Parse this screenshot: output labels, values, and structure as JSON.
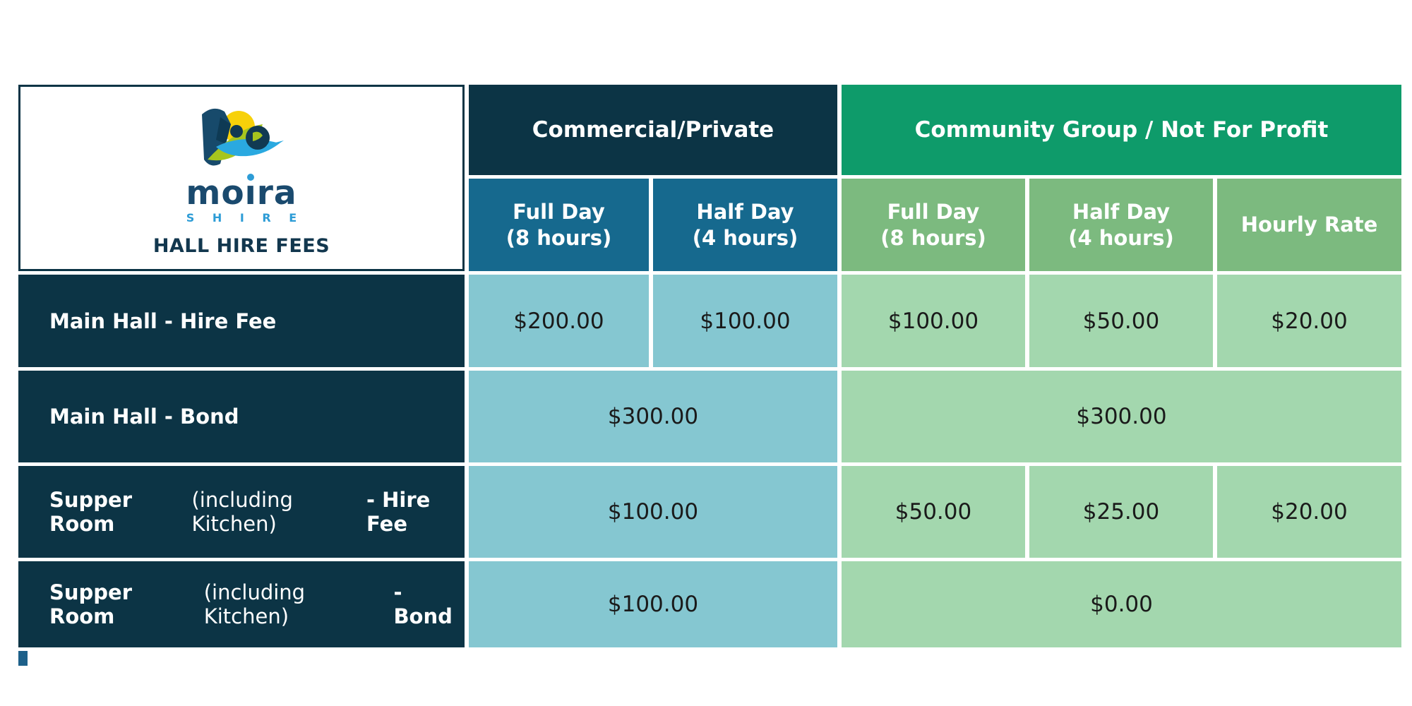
{
  "logo_panel": {
    "brand": "moira",
    "brand_sub": "S H I R E",
    "caption": "HALL HIRE FEES"
  },
  "groups": [
    {
      "id": "commercial",
      "label": "Commercial/Private"
    },
    {
      "id": "community",
      "label": "Community Group / Not For Profit"
    }
  ],
  "sub_headers": [
    {
      "group": "commercial",
      "line1": "Full Day",
      "line2": "(8 hours)"
    },
    {
      "group": "commercial",
      "line1": "Half Day",
      "line2": "(4 hours)"
    },
    {
      "group": "community",
      "line1": "Full Day",
      "line2": "(8 hours)"
    },
    {
      "group": "community",
      "line1": "Half Day",
      "line2": "(4 hours)"
    },
    {
      "group": "community",
      "line1": "Hourly Rate",
      "line2": ""
    }
  ],
  "rows": [
    {
      "label_parts": [
        {
          "text": "Main Hall - Hire Fee",
          "bold": true
        }
      ],
      "cells": [
        {
          "value": "$200.00",
          "group": "commercial",
          "span": 1
        },
        {
          "value": "$100.00",
          "group": "commercial",
          "span": 1
        },
        {
          "value": "$100.00",
          "group": "community",
          "span": 1
        },
        {
          "value": "$50.00",
          "group": "community",
          "span": 1
        },
        {
          "value": "$20.00",
          "group": "community",
          "span": 1
        }
      ]
    },
    {
      "label_parts": [
        {
          "text": "Main Hall - Bond",
          "bold": true
        }
      ],
      "cells": [
        {
          "value": "$300.00",
          "group": "commercial",
          "span": 2
        },
        {
          "value": "$300.00",
          "group": "community",
          "span": 3
        }
      ]
    },
    {
      "label_parts": [
        {
          "text": "Supper Room ",
          "bold": true
        },
        {
          "text": "(including Kitchen) ",
          "bold": false
        },
        {
          "text": "- Hire Fee",
          "bold": true
        }
      ],
      "cells": [
        {
          "value": "$100.00",
          "group": "commercial",
          "span": 2
        },
        {
          "value": "$50.00",
          "group": "community",
          "span": 1
        },
        {
          "value": "$25.00",
          "group": "community",
          "span": 1
        },
        {
          "value": "$20.00",
          "group": "community",
          "span": 1
        }
      ]
    },
    {
      "label_parts": [
        {
          "text": "Supper Room ",
          "bold": true
        },
        {
          "text": "(including Kitchen) ",
          "bold": false
        },
        {
          "text": "- Bond",
          "bold": true
        }
      ],
      "cells": [
        {
          "value": "$100.00",
          "group": "commercial",
          "span": 2
        },
        {
          "value": "$0.00",
          "group": "community",
          "span": 3
        }
      ]
    }
  ],
  "colors": {
    "navy": "#0C3445",
    "emerald": "#0E9B6A",
    "teal_header": "#16698E",
    "green_header": "#7CBA7F",
    "teal_cell": "#85C7D1",
    "green_cell": "#A3D7AE",
    "cell_text": "#1A1A1A",
    "brand_navy": "#1A4A6E",
    "brand_blue": "#2D9CD6",
    "title_navy": "#12374E"
  },
  "chart_data": {
    "type": "table",
    "title": "HALL HIRE FEES",
    "column_groups": [
      "Commercial/Private",
      "Community Group / Not For Profit"
    ],
    "columns": [
      "Commercial Full Day (8 hours)",
      "Commercial Half Day (4 hours)",
      "Community Full Day (8 hours)",
      "Community Half Day (4 hours)",
      "Community Hourly Rate"
    ],
    "rows": [
      {
        "label": "Main Hall - Hire Fee",
        "values": [
          200.0,
          100.0,
          100.0,
          50.0,
          20.0
        ]
      },
      {
        "label": "Main Hall - Bond",
        "values": [
          300.0,
          300.0,
          300.0,
          300.0,
          300.0
        ],
        "note": "commercial $300.00 spans both commercial columns; community $300.00 spans all community columns"
      },
      {
        "label": "Supper Room (including Kitchen) - Hire Fee",
        "values": [
          100.0,
          100.0,
          50.0,
          25.0,
          20.0
        ],
        "note": "commercial $100.00 spans both commercial columns"
      },
      {
        "label": "Supper Room (including Kitchen) - Bond",
        "values": [
          100.0,
          100.0,
          0.0,
          0.0,
          0.0
        ],
        "note": "commercial $100.00 spans both commercial columns; community $0.00 spans all community columns"
      }
    ]
  }
}
